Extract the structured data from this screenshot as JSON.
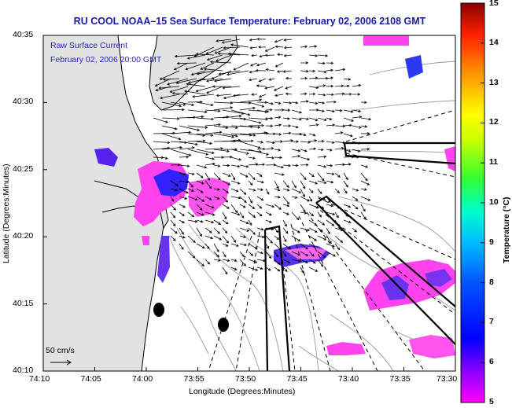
{
  "title": "RU COOL  NOAA–15  Sea Surface Temperature:  February 02, 2006 2108 GMT",
  "legend": {
    "line1": "Raw Surface Current",
    "line2": "February 02, 2006 20:00 GMT"
  },
  "axes": {
    "x_label": "Longitude (Degrees:Minutes)",
    "y_label": "Latitude (Degrees:Minutes)",
    "x_ticks": [
      "74:10",
      "74:05",
      "74:00",
      "73:55",
      "73:50",
      "73:45",
      "73:40",
      "73:35",
      "73:30"
    ],
    "y_ticks": [
      "40:35",
      "40:30",
      "40:25",
      "40:20",
      "40:15",
      "40:10"
    ],
    "x_extent": [
      "74:10",
      "73:30"
    ],
    "y_extent": [
      "40:10",
      "40:35"
    ]
  },
  "scale_bar": {
    "label": "50 cm/s"
  },
  "colorbar": {
    "label": "Temperature (°C)",
    "ticks": [
      "15",
      "14",
      "13",
      "12",
      "11",
      "10",
      "9",
      "8",
      "7",
      "6",
      "5"
    ],
    "range": [
      5,
      15
    ],
    "colormap": "jet"
  },
  "colors": {
    "title": "#1a1aa8",
    "legend_text": "#2727b8",
    "sst_warm": "#ff33ff",
    "sst_cool": "#2222ee",
    "contour": "#9a9a9a",
    "vectors": "#000000"
  }
}
